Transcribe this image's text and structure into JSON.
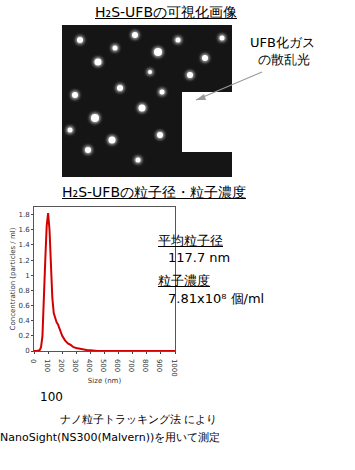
{
  "image_section": {
    "title": "H₂S-UFBの可視化画像",
    "label": [
      "UFB化ガス",
      "の散乱光"
    ]
  },
  "chart_section": {
    "title": "H₂S-UFBの粒子径・粒子濃度",
    "mean_size_label": "平均粒子径",
    "mean_size_value": "117.7 nm",
    "concentration_label": "粒子濃度",
    "concentration_value": "7.81x10⁸ 個/ml",
    "x_axis_note": "100",
    "caption": [
      "ナノ粒子トラッキング法 により",
      "NanoSight(NS300(Malvern))を用いて測定"
    ]
  },
  "chart_data": {
    "type": "line",
    "x_label": "Size (nm)",
    "y_label": "Concentration (particles / ml)",
    "x": [
      0,
      20,
      40,
      50,
      60,
      70,
      80,
      90,
      100,
      110,
      120,
      130,
      140,
      150,
      160,
      170,
      180,
      190,
      200,
      220,
      240,
      260,
      280,
      300,
      320,
      340,
      360,
      380,
      400,
      450,
      500,
      600,
      700,
      800,
      900,
      1000
    ],
    "values": [
      0,
      0,
      0.01,
      0.05,
      0.2,
      0.6,
      1.2,
      1.65,
      1.82,
      1.6,
      1.1,
      0.7,
      0.5,
      0.42,
      0.38,
      0.35,
      0.3,
      0.25,
      0.2,
      0.14,
      0.1,
      0.08,
      0.05,
      0.04,
      0.03,
      0.02,
      0.02,
      0.01,
      0.01,
      0,
      0,
      0,
      0,
      0,
      0,
      0
    ],
    "color": "#d40000",
    "xlim": [
      0,
      1000
    ],
    "xticks": [
      0,
      100,
      200,
      300,
      400,
      500,
      600,
      700,
      800,
      900,
      1000
    ],
    "ylim": [
      0,
      1.9
    ],
    "yticks": [
      0,
      0.2,
      0.4,
      0.6,
      0.8,
      1,
      1.2,
      1.4,
      1.6,
      1.8
    ],
    "grid": false
  }
}
